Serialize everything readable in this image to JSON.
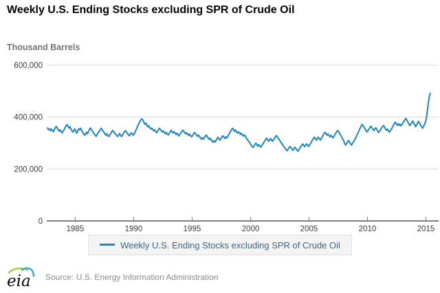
{
  "title": "Weekly U.S. Ending Stocks excluding SPR of Crude Oil",
  "axis_unit_label": "Thousand Barrels",
  "source": "Source: U.S. Energy Information Administration",
  "logo_text": "eia",
  "legend": {
    "label": "Weekly U.S. Ending Stocks excluding SPR of Crude Oil"
  },
  "colors": {
    "line": "#1b86c6",
    "grid": "#d9d9d9",
    "axis": "#7f7f7f",
    "tick_text": "#3c3c3c",
    "legend_text": "#336a90",
    "logo_green": "#a6ce39",
    "logo_blue": "#29abe2"
  },
  "chart_data": {
    "type": "line",
    "title": "Weekly U.S. Ending Stocks excluding SPR of Crude Oil",
    "ylabel": "Thousand Barrels",
    "xlabel": "",
    "ylim": [
      0,
      600000
    ],
    "x_range": [
      1982.62,
      2015.38
    ],
    "grid": true,
    "legend_position": "bottom",
    "yticks": [
      {
        "value": 0,
        "label": "0"
      },
      {
        "value": 200000,
        "label": "200,000"
      },
      {
        "value": 400000,
        "label": "400,000"
      },
      {
        "value": 600000,
        "label": "600,000"
      }
    ],
    "xticks": [
      {
        "year": 1985,
        "label": "1985"
      },
      {
        "year": 1990,
        "label": "1990"
      },
      {
        "year": 1995,
        "label": "1995"
      },
      {
        "year": 2000,
        "label": "2000"
      },
      {
        "year": 2005,
        "label": "2005"
      },
      {
        "year": 2010,
        "label": "2010"
      },
      {
        "year": 2015,
        "label": "2015"
      }
    ],
    "series": [
      {
        "name": "Weekly U.S. Ending Stocks excluding SPR of Crude Oil",
        "unit": "thousand barrels",
        "cadence": "monthly approximation of weekly data",
        "years": [
          {
            "year": 1982,
            "start_month": 8,
            "values": [
              358000,
              352000,
              355000,
              348000,
              354000
            ]
          },
          {
            "year": 1983,
            "values": [
              349000,
              344000,
              352000,
              359000,
              364000,
              358000,
              352000,
              346000,
              351000,
              344000,
              339000,
              346000
            ]
          },
          {
            "year": 1984,
            "values": [
              352000,
              359000,
              366000,
              371000,
              365000,
              358000,
              363000,
              355000,
              348000,
              342000,
              348000,
              355000
            ]
          },
          {
            "year": 1985,
            "values": [
              346000,
              338000,
              346000,
              355000,
              351000,
              357000,
              349000,
              342000,
              336000,
              330000,
              335000,
              342000
            ]
          },
          {
            "year": 1986,
            "values": [
              336000,
              344000,
              352000,
              358000,
              353000,
              347000,
              341000,
              335000,
              330000,
              326000,
              333000,
              340000
            ]
          },
          {
            "year": 1987,
            "values": [
              345000,
              351000,
              357000,
              352000,
              346000,
              341000,
              335000,
              330000,
              336000,
              329000,
              325000,
              332000
            ]
          },
          {
            "year": 1988,
            "values": [
              337000,
              344000,
              349000,
              344000,
              339000,
              334000,
              329000,
              325000,
              331000,
              337000,
              330000,
              325000
            ]
          },
          {
            "year": 1989,
            "values": [
              331000,
              338000,
              343000,
              348000,
              343000,
              338000,
              332000,
              328000,
              334000,
              340000,
              335000,
              330000
            ]
          },
          {
            "year": 1990,
            "values": [
              336000,
              343000,
              351000,
              360000,
              369000,
              377000,
              384000,
              390000,
              393000,
              388000,
              380000,
              372000
            ]
          },
          {
            "year": 1991,
            "values": [
              377000,
              369000,
              362000,
              367000,
              360000,
              354000,
              358000,
              352000,
              347000,
              351000,
              345000,
              340000
            ]
          },
          {
            "year": 1992,
            "values": [
              346000,
              352000,
              357000,
              352000,
              347000,
              342000,
              347000,
              341000,
              336000,
              341000,
              335000,
              331000
            ]
          },
          {
            "year": 1993,
            "values": [
              337000,
              343000,
              349000,
              344000,
              339000,
              344000,
              338000,
              333000,
              338000,
              332000,
              328000,
              334000
            ]
          },
          {
            "year": 1994,
            "values": [
              339000,
              345000,
              350000,
              345000,
              340000,
              335000,
              340000,
              334000,
              329000,
              334000,
              328000,
              324000
            ]
          },
          {
            "year": 1995,
            "values": [
              330000,
              336000,
              341000,
              336000,
              331000,
              326000,
              331000,
              325000,
              320000,
              315000,
              320000,
              315000
            ]
          },
          {
            "year": 1996,
            "values": [
              320000,
              326000,
              331000,
              325000,
              319000,
              314000,
              319000,
              313000,
              308000,
              303000,
              309000,
              304000
            ]
          },
          {
            "year": 1997,
            "values": [
              310000,
              316000,
              322000,
              317000,
              312000,
              317000,
              323000,
              328000,
              323000,
              318000,
              324000,
              319000
            ]
          },
          {
            "year": 1998,
            "values": [
              325000,
              332000,
              339000,
              346000,
              352000,
              357000,
              351000,
              345000,
              350000,
              344000,
              339000,
              344000
            ]
          },
          {
            "year": 1999,
            "values": [
              339000,
              333000,
              338000,
              332000,
              327000,
              332000,
              326000,
              320000,
              315000,
              309000,
              304000,
              299000
            ]
          },
          {
            "year": 2000,
            "values": [
              293000,
              287000,
              283000,
              289000,
              295000,
              300000,
              294000,
              288000,
              294000,
              289000,
              284000,
              290000
            ]
          },
          {
            "year": 2001,
            "values": [
              296000,
              302000,
              308000,
              314000,
              319000,
              313000,
              307000,
              312000,
              318000,
              312000,
              307000,
              313000
            ]
          },
          {
            "year": 2002,
            "values": [
              318000,
              324000,
              329000,
              324000,
              318000,
              313000,
              307000,
              301000,
              296000,
              290000,
              285000,
              280000
            ]
          },
          {
            "year": 2003,
            "values": [
              274000,
              270000,
              276000,
              282000,
              287000,
              282000,
              277000,
              272000,
              278000,
              284000,
              279000,
              274000
            ]
          },
          {
            "year": 2004,
            "values": [
              268000,
              274000,
              280000,
              286000,
              292000,
              297000,
              291000,
              286000,
              292000,
              297000,
              292000,
              287000
            ]
          },
          {
            "year": 2005,
            "values": [
              292000,
              298000,
              305000,
              312000,
              318000,
              323000,
              317000,
              311000,
              317000,
              323000,
              317000,
              312000
            ]
          },
          {
            "year": 2006,
            "values": [
              317000,
              324000,
              331000,
              337000,
              342000,
              336000,
              330000,
              335000,
              329000,
              324000,
              330000,
              325000
            ]
          },
          {
            "year": 2007,
            "values": [
              320000,
              326000,
              332000,
              338000,
              344000,
              349000,
              343000,
              336000,
              330000,
              323000,
              317000,
              310000
            ]
          },
          {
            "year": 2008,
            "values": [
              299000,
              292000,
              298000,
              304000,
              310000,
              304000,
              298000,
              292000,
              298000,
              304000,
              310000,
              317000
            ]
          },
          {
            "year": 2009,
            "values": [
              325000,
              333000,
              341000,
              349000,
              357000,
              365000,
              372000,
              367000,
              361000,
              355000,
              349000,
              343000
            ]
          },
          {
            "year": 2010,
            "values": [
              348000,
              354000,
              360000,
              365000,
              360000,
              354000,
              348000,
              354000,
              359000,
              353000,
              347000,
              341000
            ]
          },
          {
            "year": 2011,
            "values": [
              346000,
              352000,
              358000,
              363000,
              368000,
              362000,
              355000,
              349000,
              354000,
              348000,
              342000,
              347000
            ]
          },
          {
            "year": 2012,
            "values": [
              353000,
              360000,
              367000,
              374000,
              381000,
              375000,
              369000,
              374000,
              368000,
              373000,
              367000,
              372000
            ]
          },
          {
            "year": 2013,
            "values": [
              378000,
              384000,
              390000,
              395000,
              388000,
              381000,
              374000,
              367000,
              373000,
              379000,
              385000,
              378000
            ]
          },
          {
            "year": 2014,
            "values": [
              370000,
              363000,
              370000,
              377000,
              384000,
              377000,
              370000,
              363000,
              357000,
              364000,
              372000,
              380000
            ]
          },
          {
            "year": 2015,
            "values": [
              397000,
              425000,
              455000,
              480000,
              492000
            ]
          }
        ]
      }
    ]
  }
}
